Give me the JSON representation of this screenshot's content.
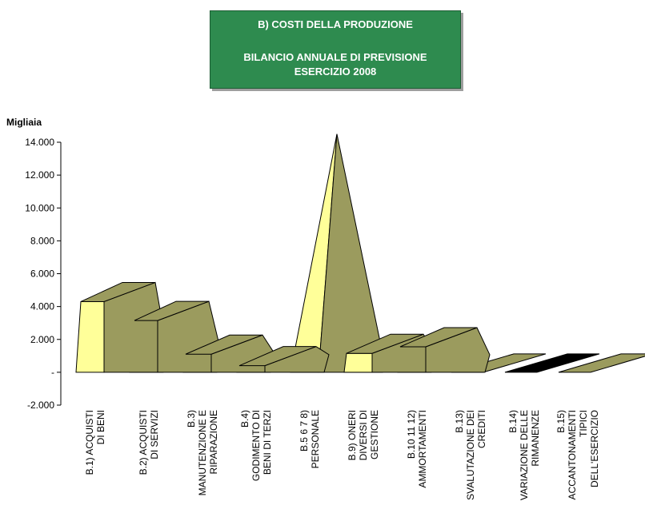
{
  "title_box": {
    "line1": "B) COSTI DELLA PRODUZIONE",
    "line2": "BILANCIO ANNUALE DI PREVISIONE",
    "line3": "ESERCIZIO 2008"
  },
  "colors": {
    "title_bg": "#2e8b4f",
    "front_face": "#ffff99",
    "side_face": "#9b9b5e",
    "black_series": "#000000"
  },
  "chart_data": {
    "type": "3d-bar",
    "title": "B) COSTI DELLA PRODUZIONE — BILANCIO ANNUALE DI PREVISIONE ESERCIZIO 2008",
    "ylabel": "Migliaia",
    "ylim": [
      -2000,
      14000
    ],
    "yticks": [
      {
        "value": 14000,
        "label": "14.000"
      },
      {
        "value": 12000,
        "label": "12.000"
      },
      {
        "value": 10000,
        "label": "10.000"
      },
      {
        "value": 8000,
        "label": "8.000"
      },
      {
        "value": 6000,
        "label": "6.000"
      },
      {
        "value": 4000,
        "label": "4.000"
      },
      {
        "value": 2000,
        "label": "2.000"
      },
      {
        "value": 0,
        "label": "-"
      },
      {
        "value": -2000,
        "label": "-2.000"
      }
    ],
    "categories": [
      {
        "lines": [
          "B.1) ACQUISTI",
          "DI BENI"
        ],
        "value": 4300,
        "shape": "block"
      },
      {
        "lines": [
          "B.2) ACQUISTI",
          "DI SERVIZI"
        ],
        "value": 3150,
        "shape": "block"
      },
      {
        "lines": [
          "B.3)",
          "MANUTENZIONE E",
          "RIPARAZIONE"
        ],
        "value": 1100,
        "shape": "block"
      },
      {
        "lines": [
          "B.4)",
          "GODIMENTO DI",
          "BENI DI TERZI"
        ],
        "value": 400,
        "shape": "block"
      },
      {
        "lines": [
          "B.5 6 7 8)",
          "PERSONALE"
        ],
        "value": 14500,
        "shape": "peak"
      },
      {
        "lines": [
          "B.9) ONERI",
          "DIVERSI DI",
          "GESTIONE"
        ],
        "value": 1150,
        "shape": "block"
      },
      {
        "lines": [
          "B.10 11 12)",
          "AMMORTAMENTI"
        ],
        "value": 1550,
        "shape": "block"
      },
      {
        "lines": [
          "B.13)",
          "SVALUTAZIONE DEI",
          "CREDITI"
        ],
        "value": 0,
        "shape": "flat"
      },
      {
        "lines": [
          "B.14)",
          "VARIAZIONE DELLE",
          "RIMANENZE"
        ],
        "value": 0,
        "shape": "flat-black"
      },
      {
        "lines": [
          "B.15)",
          "ACCANTONAMENTI",
          "TIPICI",
          "DELL'ESERCIZIO"
        ],
        "value": 0,
        "shape": "flat"
      }
    ],
    "grid": false,
    "legend": "none"
  }
}
